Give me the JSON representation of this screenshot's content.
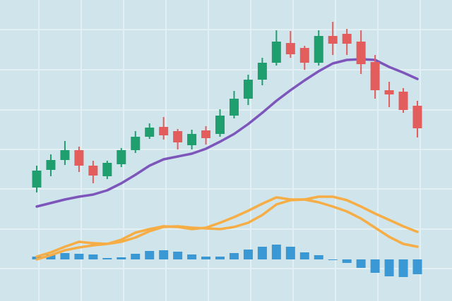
{
  "chart_data": {
    "type": "candlestick",
    "open": [
      161,
      186,
      200,
      214,
      192,
      177,
      194,
      214,
      233,
      247,
      241,
      221,
      242,
      237,
      263,
      287,
      314,
      338,
      366,
      359,
      338,
      376,
      379,
      368,
      339,
      299,
      297,
      277
    ],
    "high": [
      192,
      208,
      227,
      219,
      199,
      199,
      217,
      241,
      252,
      261,
      244,
      243,
      248,
      272,
      298,
      321,
      345,
      384,
      383,
      362,
      384,
      396,
      386,
      384,
      349,
      311,
      302,
      284
    ],
    "low": [
      154,
      177,
      193,
      183,
      167,
      173,
      190,
      210,
      230,
      229,
      215,
      215,
      222,
      233,
      259,
      278,
      306,
      334,
      345,
      328,
      334,
      349,
      349,
      322,
      287,
      275,
      267,
      232
    ],
    "close": [
      185,
      200,
      214,
      192,
      178,
      196,
      214,
      233,
      246,
      235,
      225,
      237,
      231,
      263,
      287,
      314,
      338,
      368,
      350,
      338,
      376,
      365,
      365,
      336,
      299,
      293,
      271,
      245
    ],
    "up_color": "#1f9e6e",
    "down_color": "#e35d5d",
    "ylim": [
      0,
      427
    ],
    "series": [
      {
        "color": "#7d55bb",
        "values": [
          134,
          139,
          144,
          148,
          151,
          157,
          167,
          179,
          192,
          201,
          205,
          209,
          216,
          226,
          237,
          251,
          267,
          284,
          299,
          313,
          326,
          337,
          342,
          343,
          342,
          332,
          324,
          315
        ]
      },
      {
        "color": "#f6ad45",
        "axis": "y2",
        "values": [
          4,
          10,
          18,
          25,
          23,
          22,
          25,
          31,
          40,
          46,
          47,
          45,
          44,
          43,
          46,
          52,
          63,
          78,
          84,
          85,
          81,
          75,
          68,
          58,
          45,
          32,
          22,
          18
        ]
      },
      {
        "color": "#f6ad45",
        "axis": "y2",
        "values": [
          0,
          6,
          13,
          17,
          20,
          22,
          28,
          38,
          43,
          47,
          46,
          43,
          45,
          52,
          60,
          69,
          79,
          88,
          85,
          85,
          89,
          89,
          84,
          75,
          65,
          56,
          47,
          39
        ]
      }
    ],
    "histogram": {
      "color": "#3a98d4",
      "axis": "y2",
      "values": [
        4,
        7,
        9,
        8,
        7,
        2,
        3,
        8,
        12,
        13,
        11,
        7,
        4,
        4,
        9,
        14,
        18,
        21,
        18,
        10,
        6,
        -1,
        -5,
        -12,
        -19,
        -24,
        -25,
        -21
      ]
    },
    "y2lim": [
      -59,
      368
    ]
  }
}
